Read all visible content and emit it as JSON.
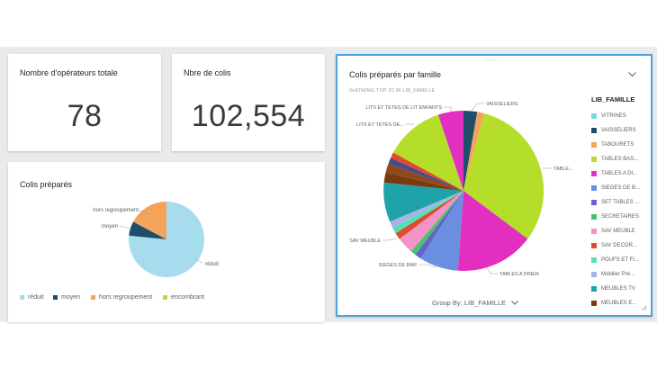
{
  "kpi_operators": {
    "title": "Nombre d'opérateurs totale",
    "value": "78"
  },
  "kpi_colis": {
    "title": "Nbre de colis",
    "value": "102,554"
  },
  "pie_colis": {
    "title": "Colis préparés",
    "labels": [
      "réduit",
      "moyen",
      "hors regroupement"
    ],
    "legend": [
      "réduit",
      "moyen",
      "hors regroupement",
      "encombrant"
    ],
    "colors": [
      "#a6dcee",
      "#1f4e6b",
      "#f5a35b",
      "#b5de2b"
    ]
  },
  "pie_famille": {
    "title": "Colis préparés par famille",
    "subtitle": "SHOWING TOP 20 IN LIB_FAMILLE",
    "chevron_icon": "chevron-down-icon",
    "drag_handle": "⋯⋯",
    "group_by": "Group By: LIB_FAMILLE",
    "legend_title": "LIB_FAMILLE",
    "callouts": {
      "vaisseliers": "VAISSELIERS",
      "lits": "LITS ET TETES DE LIT ENFANTS",
      "lits2": "LITS ET TETES DE...",
      "tables_bas": "TABLE...",
      "sav_meuble": "SAV MEUBLE",
      "sieges": "SIEGES DE BAR",
      "tables_diner": "TABLES A DINER"
    },
    "legend": [
      {
        "label": "VITRINES",
        "color": "#7fd4e3"
      },
      {
        "label": "VAISSELIERS",
        "color": "#1f4e6b"
      },
      {
        "label": "TABOURETS",
        "color": "#f5a35b"
      },
      {
        "label": "TABLES BAS...",
        "color": "#b5de2b"
      },
      {
        "label": "TABLES A DI...",
        "color": "#e32fbf"
      },
      {
        "label": "SIEGES DE B...",
        "color": "#6b8fe0"
      },
      {
        "label": "SET TABLES ...",
        "color": "#6464c9"
      },
      {
        "label": "SECRETAIRES",
        "color": "#45c46a"
      },
      {
        "label": "SAV MEUBLE",
        "color": "#f294c9"
      },
      {
        "label": "SAV DECOR...",
        "color": "#e04a2e"
      },
      {
        "label": "POUFS ET FI...",
        "color": "#54e0b4"
      },
      {
        "label": "Mobilier Pré...",
        "color": "#a7b3e8"
      },
      {
        "label": "MEUBLES TV",
        "color": "#1fa2a8"
      },
      {
        "label": "MEUBLES E...",
        "color": "#7a3a10"
      }
    ]
  }
}
